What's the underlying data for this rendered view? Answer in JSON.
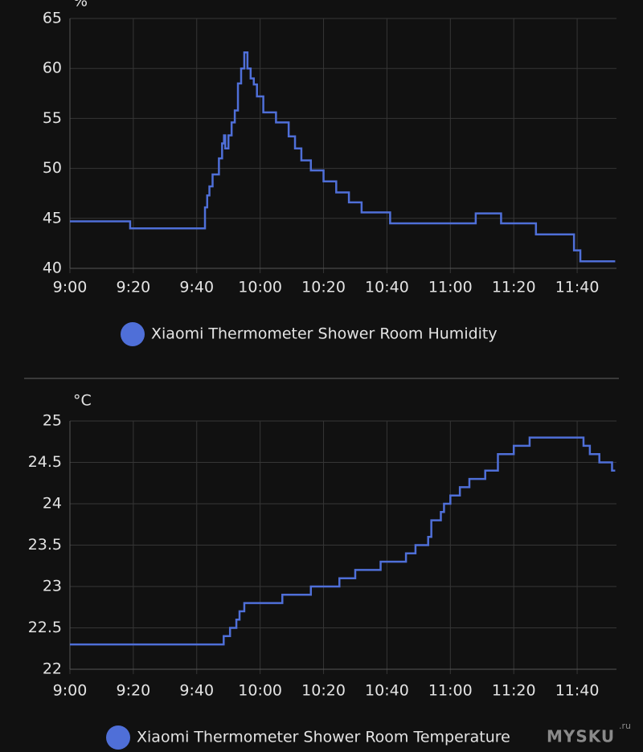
{
  "chart_data": [
    {
      "type": "line",
      "step": "post",
      "y_unit": "%",
      "x": [
        540,
        559,
        582.6,
        583.3,
        584,
        585,
        587,
        588,
        588.6,
        589,
        590,
        591,
        592,
        593,
        594,
        595,
        596,
        597,
        598,
        599,
        601,
        605,
        609,
        611,
        613,
        616,
        620,
        624,
        628,
        632,
        641,
        668,
        676,
        687,
        699,
        701,
        712
      ],
      "series": [
        {
          "name": "Xiaomi Thermometer Shower Room Humidity",
          "color": "#4f6fd8",
          "values": [
            44.7,
            44.0,
            46.1,
            47.3,
            48.2,
            49.4,
            51,
            52.5,
            53.3,
            52,
            53.3,
            54.6,
            55.8,
            58.5,
            60,
            61.6,
            60,
            59,
            58.4,
            57.2,
            55.6,
            54.6,
            53.2,
            52,
            50.8,
            49.8,
            48.7,
            47.6,
            46.6,
            45.6,
            44.5,
            45.5,
            44.5,
            43.4,
            41.8,
            40.7,
            40.7
          ]
        }
      ],
      "xlim": [
        540,
        712.4
      ],
      "xticks": [
        {
          "value": 540,
          "label": "9:00"
        },
        {
          "value": 560,
          "label": "9:20"
        },
        {
          "value": 580,
          "label": "9:40"
        },
        {
          "value": 600,
          "label": "10:00"
        },
        {
          "value": 620,
          "label": "10:20"
        },
        {
          "value": 640,
          "label": "10:40"
        },
        {
          "value": 660,
          "label": "11:00"
        },
        {
          "value": 680,
          "label": "11:20"
        },
        {
          "value": 700,
          "label": "11:40"
        }
      ],
      "ylim": [
        40,
        65
      ],
      "yticks": [
        40,
        45,
        50,
        55,
        60,
        65
      ],
      "grid": true
    },
    {
      "type": "line",
      "step": "post",
      "y_unit": "°C",
      "x": [
        540,
        588.5,
        590.5,
        592.5,
        593.5,
        595,
        607,
        616,
        625,
        630,
        638,
        646,
        649,
        653,
        654,
        657,
        658,
        660,
        663,
        666,
        671,
        675,
        680,
        685,
        702,
        704,
        707,
        711,
        712
      ],
      "series": [
        {
          "name": "Xiaomi Thermometer Shower Room Temperature",
          "color": "#4f6fd8",
          "values": [
            22.3,
            22.4,
            22.5,
            22.6,
            22.7,
            22.8,
            22.9,
            23.0,
            23.1,
            23.2,
            23.3,
            23.4,
            23.5,
            23.6,
            23.8,
            23.9,
            24.0,
            24.1,
            24.2,
            24.3,
            24.4,
            24.6,
            24.7,
            24.8,
            24.7,
            24.6,
            24.5,
            24.4,
            24.4
          ]
        }
      ],
      "xlim": [
        540,
        712.4
      ],
      "xticks": [
        {
          "value": 540,
          "label": "9:00"
        },
        {
          "value": 560,
          "label": "9:20"
        },
        {
          "value": 580,
          "label": "9:40"
        },
        {
          "value": 600,
          "label": "10:00"
        },
        {
          "value": 620,
          "label": "10:20"
        },
        {
          "value": 640,
          "label": "10:40"
        },
        {
          "value": 660,
          "label": "11:00"
        },
        {
          "value": 680,
          "label": "11:20"
        },
        {
          "value": 700,
          "label": "11:40"
        }
      ],
      "ylim": [
        22,
        25
      ],
      "yticks": [
        22,
        22.5,
        23,
        23.5,
        24,
        24.5,
        25
      ],
      "grid": true
    }
  ],
  "watermark": {
    "text": "MYSKU",
    "suffix": ".ru"
  }
}
